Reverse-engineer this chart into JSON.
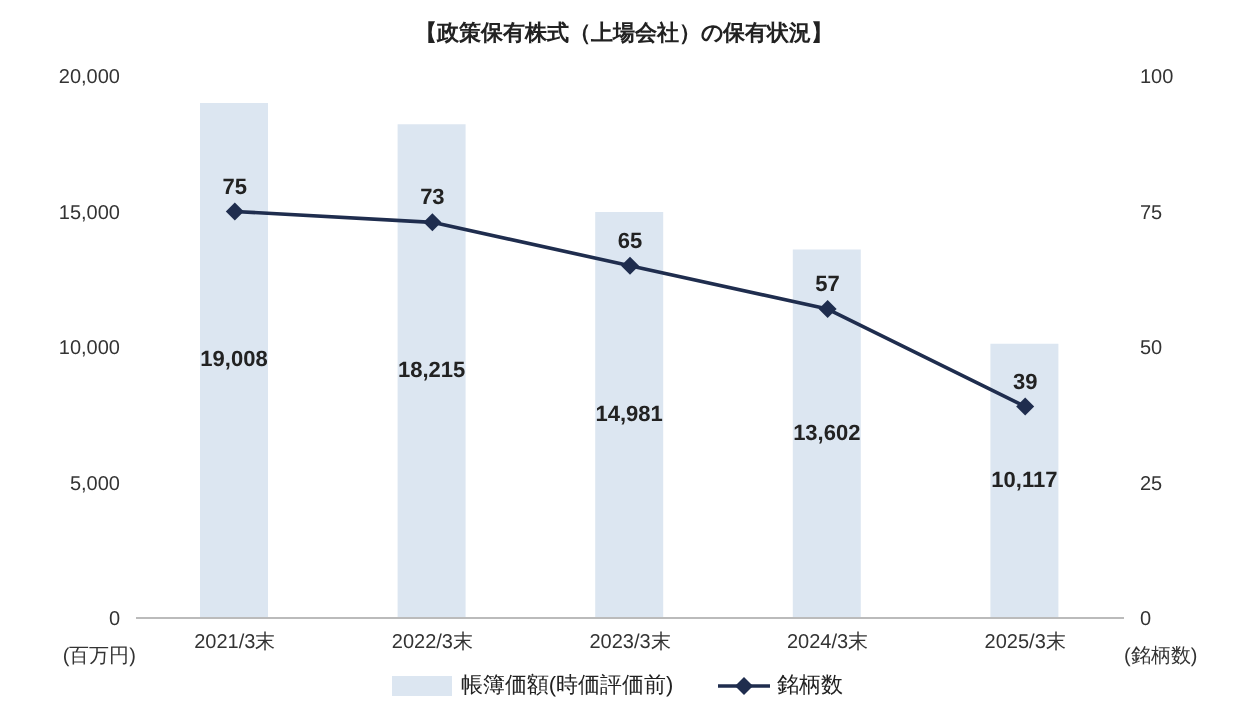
{
  "chart_data": {
    "type": "bar",
    "title": "【政策保有株式（上場会社）の保有状況】",
    "ylabel": "(百万円)",
    "y2label": "(銘柄数)",
    "categories": [
      "2021/3末",
      "2022/3末",
      "2023/3末",
      "2024/3末",
      "2025/3末"
    ],
    "series": [
      {
        "name": "帳簿価額(時価評価前)",
        "color": "#dce6f1",
        "values": [
          19008,
          18215,
          14981,
          13602,
          10117
        ],
        "value_labels": [
          "19,008",
          "18,215",
          "14,981",
          "13,602",
          "10,117"
        ]
      },
      {
        "name": "銘柄数",
        "type": "line",
        "axis": "y2",
        "color": "#1f2d4e",
        "marker": "diamond",
        "values": [
          75,
          73,
          65,
          57,
          39
        ],
        "value_labels": [
          "75",
          "73",
          "65",
          "57",
          "39"
        ]
      }
    ],
    "ylim": [
      0,
      20000
    ],
    "yticks": [
      {
        "value": 0,
        "label": "0"
      },
      {
        "value": 5000,
        "label": "5,000"
      },
      {
        "value": 10000,
        "label": "10,000"
      },
      {
        "value": 15000,
        "label": "15,000"
      },
      {
        "value": 20000,
        "label": "20,000"
      }
    ],
    "y2lim": [
      0,
      100
    ],
    "y2ticks": [
      0,
      25,
      50,
      75,
      100
    ],
    "legend": "bottom"
  }
}
